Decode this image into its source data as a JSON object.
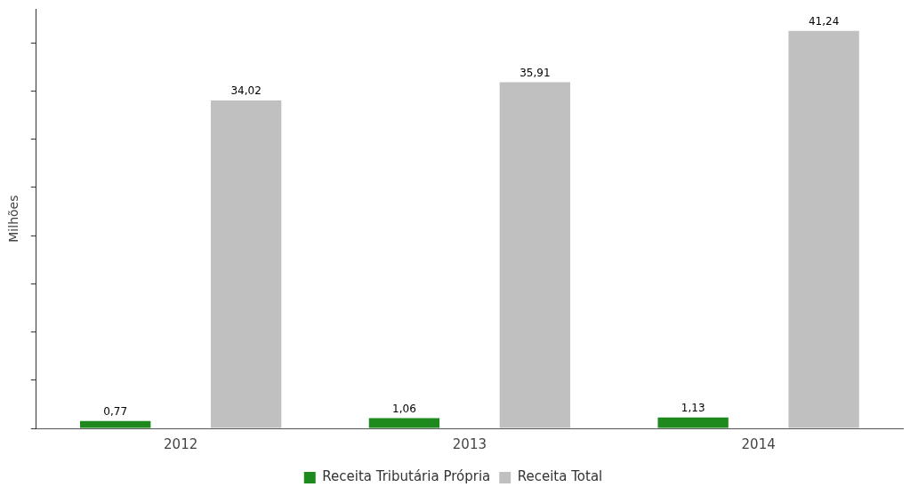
{
  "chart_data": {
    "type": "bar",
    "ylabel": "Milhões",
    "categories": [
      "2012",
      "2013",
      "2014"
    ],
    "series": [
      {
        "name": "Receita Tributária Própria",
        "color": "#1e8a1e",
        "values": [
          0.77,
          1.06,
          1.13
        ],
        "value_labels": [
          "0,77",
          "1,06",
          "1,13"
        ]
      },
      {
        "name": "Receita Total",
        "color": "#c0c0c0",
        "values": [
          34.02,
          35.91,
          41.24
        ],
        "value_labels": [
          "34,02",
          "35,91",
          "41,24"
        ]
      }
    ],
    "ylim": [
      0,
      43.5
    ],
    "yticks": [
      {
        "value": 0,
        "label": null
      },
      {
        "value": 5,
        "label": null
      },
      {
        "value": 10,
        "label": null
      },
      {
        "value": 15,
        "label": null
      },
      {
        "value": 20,
        "label": null
      },
      {
        "value": 25,
        "label": null
      },
      {
        "value": 30,
        "label": null
      },
      {
        "value": 35,
        "label": null
      },
      {
        "value": 40,
        "label": null
      }
    ],
    "tick_labels": "x",
    "grid": false,
    "legend": "bottom"
  }
}
